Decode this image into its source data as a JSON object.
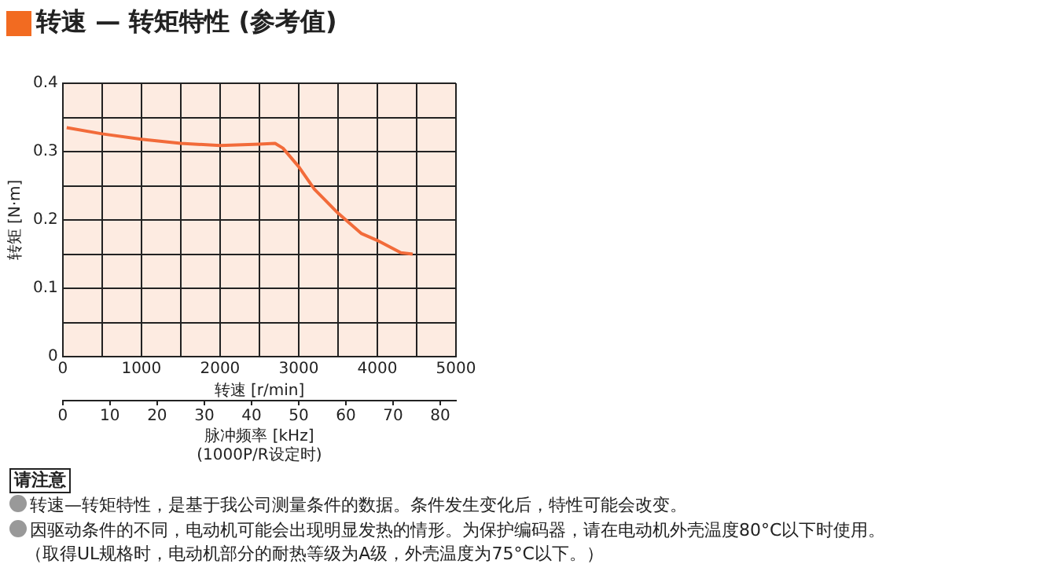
{
  "chart_data": {
    "type": "line",
    "title": "转速 — 转矩特性 (参考值)",
    "xlabel": "转速 [r/min]",
    "ylabel": "转矩 [N·m]",
    "x2label": "脉冲频率 [kHz]\n(1000P/R设定时)",
    "series": [
      {
        "color": "#f26b3a",
        "x": [
          50,
          500,
          1000,
          1500,
          2000,
          2500,
          2700,
          2800,
          3000,
          3200,
          3500,
          3800,
          4000,
          4300,
          4450
        ],
        "values": [
          0.335,
          0.326,
          0.318,
          0.312,
          0.309,
          0.311,
          0.312,
          0.305,
          0.278,
          0.245,
          0.21,
          0.18,
          0.17,
          0.152,
          0.15
        ]
      }
    ],
    "xlim": [
      0,
      5000
    ],
    "xticks": [
      0,
      {
        "value": 500,
        "label": null
      },
      1000,
      {
        "value": 1500,
        "label": null
      },
      2000,
      {
        "value": 2500,
        "label": null
      },
      3000,
      {
        "value": 3500,
        "label": null
      },
      4000,
      {
        "value": 4500,
        "label": null
      },
      5000
    ],
    "ylim": [
      0,
      0.4
    ],
    "yticks": [
      0,
      {
        "value": 0.05,
        "label": null
      },
      0.1,
      {
        "value": 0.15,
        "label": null
      },
      0.2,
      {
        "value": 0.25,
        "label": null
      },
      0.3,
      {
        "value": 0.35,
        "label": null
      },
      0.4
    ],
    "x2lim": [
      0,
      83.33
    ],
    "x2ticks": [
      0,
      10,
      20,
      30,
      40,
      50,
      60,
      70,
      80
    ],
    "grid": true,
    "legend": false,
    "marker": "none",
    "line_style": "solid",
    "annotations": [
      "请注意",
      "转速—转矩特性，是基于我公司测量条件的数据。条件发生变化后，特性可能会改变。",
      "因驱动条件的不同，电动机可能会出现明显发热的情形。为保护编码器，请在电动机外壳温度80°C以下时使用。",
      "（取得UL规格时，电动机部分的耐热等级为A级，外壳温度为75°C以下。）"
    ]
  }
}
